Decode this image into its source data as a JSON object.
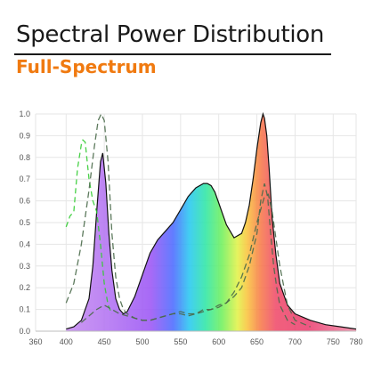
{
  "header": {
    "title": "Spectral Power Distribution",
    "subtitle": "Full-Spectrum"
  },
  "colors": {
    "title": "#1a1a1a",
    "subtitle": "#f07a10",
    "grid": "#e6e6e6",
    "green_dashes": "#33cc33",
    "dark_dashes": "#4a6a4a"
  },
  "chart_data": {
    "type": "area",
    "title": "Spectral Power Distribution",
    "subtitle": "Full-Spectrum",
    "xlabel": "",
    "ylabel": "",
    "xlim": [
      360,
      780
    ],
    "ylim": [
      0,
      1.0
    ],
    "x_ticks": [
      360,
      400,
      450,
      500,
      550,
      600,
      650,
      700,
      750,
      780
    ],
    "y_ticks": [
      0,
      0.1,
      0.2,
      0.3,
      0.4,
      0.5,
      0.6,
      0.7,
      0.8,
      0.9,
      1.0
    ],
    "grid": true,
    "series": [
      {
        "style": "filled-area-spectrum-colored",
        "x": [
          400,
          410,
          420,
          430,
          435,
          440,
          445,
          448,
          452,
          456,
          460,
          465,
          470,
          475,
          480,
          490,
          500,
          510,
          520,
          530,
          540,
          550,
          560,
          570,
          580,
          585,
          590,
          595,
          600,
          610,
          620,
          630,
          635,
          640,
          645,
          650,
          655,
          658,
          660,
          663,
          666,
          670,
          675,
          680,
          690,
          700,
          720,
          740,
          760,
          780
        ],
        "y": [
          0.01,
          0.02,
          0.05,
          0.15,
          0.3,
          0.55,
          0.78,
          0.82,
          0.68,
          0.45,
          0.28,
          0.15,
          0.1,
          0.08,
          0.09,
          0.16,
          0.26,
          0.36,
          0.42,
          0.46,
          0.5,
          0.56,
          0.62,
          0.66,
          0.68,
          0.68,
          0.67,
          0.64,
          0.59,
          0.49,
          0.43,
          0.45,
          0.5,
          0.58,
          0.7,
          0.84,
          0.96,
          1.0,
          0.98,
          0.9,
          0.75,
          0.52,
          0.35,
          0.22,
          0.12,
          0.08,
          0.05,
          0.03,
          0.02,
          0.01
        ]
      },
      {
        "style": "dashed-green",
        "x": [
          400,
          405,
          410,
          415,
          420,
          422,
          425,
          430,
          435,
          440,
          445,
          450,
          455,
          460
        ],
        "y": [
          0.48,
          0.53,
          0.55,
          0.75,
          0.86,
          0.88,
          0.87,
          0.7,
          0.6,
          0.55,
          0.4,
          0.22,
          0.12,
          0.08
        ]
      },
      {
        "style": "dashed-dark",
        "x": [
          400,
          410,
          420,
          430,
          437,
          442,
          446,
          450,
          455,
          460,
          465,
          470,
          475,
          480,
          490,
          500,
          510,
          520,
          530,
          540,
          550,
          560,
          570,
          580,
          590,
          600,
          610,
          620,
          630,
          640,
          650,
          655,
          660,
          664,
          668,
          672,
          676,
          680,
          690,
          700
        ],
        "y": [
          0.13,
          0.22,
          0.4,
          0.65,
          0.85,
          0.97,
          1.0,
          0.97,
          0.78,
          0.45,
          0.25,
          0.15,
          0.1,
          0.08,
          0.06,
          0.05,
          0.05,
          0.06,
          0.07,
          0.08,
          0.09,
          0.08,
          0.08,
          0.1,
          0.1,
          0.12,
          0.13,
          0.16,
          0.2,
          0.3,
          0.45,
          0.6,
          0.68,
          0.62,
          0.45,
          0.3,
          0.2,
          0.12,
          0.05,
          0.03
        ]
      },
      {
        "style": "dashed-dark",
        "x": [
          420,
          430,
          440,
          450,
          460,
          470,
          480,
          490,
          500,
          510,
          520,
          530,
          540,
          550,
          560,
          570,
          580,
          590,
          600,
          610,
          620,
          630,
          640,
          650,
          660,
          665,
          670,
          680,
          690,
          700,
          720
        ],
        "y": [
          0.04,
          0.07,
          0.1,
          0.12,
          0.1,
          0.08,
          0.07,
          0.06,
          0.05,
          0.05,
          0.06,
          0.07,
          0.08,
          0.08,
          0.07,
          0.08,
          0.09,
          0.1,
          0.11,
          0.13,
          0.18,
          0.25,
          0.35,
          0.5,
          0.62,
          0.63,
          0.55,
          0.3,
          0.12,
          0.05,
          0.02
        ]
      }
    ]
  }
}
